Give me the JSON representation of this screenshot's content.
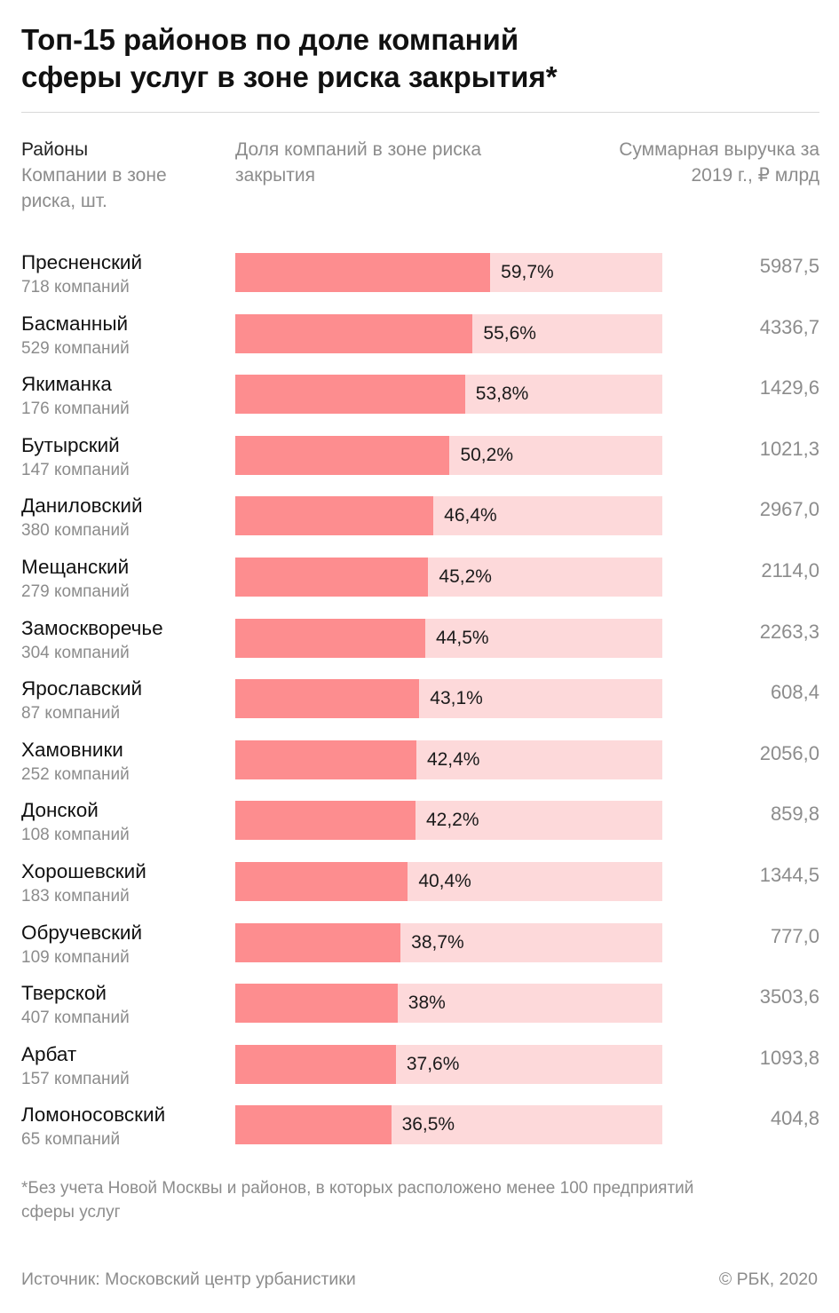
{
  "title_lines": [
    "Топ-15 районов по доле компаний",
    "сферы услуг в зоне риска закрытия*"
  ],
  "headers": {
    "district": "Районы",
    "companies": "Компании в зоне риска, шт.",
    "share": "Доля компаний в зоне риска закрытия",
    "revenue": "Суммарная выручка за 2019 г., ₽ млрд"
  },
  "colors": {
    "bar_fill": "#fd8d8f",
    "bar_track": "#fdd9da"
  },
  "chart_data": {
    "type": "bar",
    "orientation": "horizontal",
    "xlim": [
      0,
      100
    ],
    "categories": [
      "Пресненский",
      "Басманный",
      "Якиманка",
      "Бутырский",
      "Даниловский",
      "Мещанский",
      "Замоскворечье",
      "Ярославский",
      "Хамовники",
      "Донской",
      "Хорошевский",
      "Обручевский",
      "Тверской",
      "Арбат",
      "Ломоносовский"
    ],
    "companies": [
      "718 компаний",
      "529 компаний",
      "176 компаний",
      "147 компаний",
      "380 компаний",
      "279 компаний",
      "304 компаний",
      "87 компаний",
      "252 компаний",
      "108 компаний",
      "183 компаний",
      "109 компаний",
      "407 компаний",
      "157 компаний",
      "65 компаний"
    ],
    "values": [
      59.7,
      55.6,
      53.8,
      50.2,
      46.4,
      45.2,
      44.5,
      43.1,
      42.4,
      42.2,
      40.4,
      38.7,
      38,
      37.6,
      36.5
    ],
    "value_labels": [
      "59,7%",
      "55,6%",
      "53,8%",
      "50,2%",
      "46,4%",
      "45,2%",
      "44,5%",
      "43,1%",
      "42,4%",
      "42,2%",
      "40,4%",
      "38,7%",
      "38%",
      "37,6%",
      "36,5%"
    ],
    "revenue": [
      "5987,5",
      "4336,7",
      "1429,6",
      "1021,3",
      "2967,0",
      "2114,0",
      "2263,3",
      "608,4",
      "2056,0",
      "859,8",
      "1344,5",
      "777,0",
      "3503,6",
      "1093,8",
      "404,8"
    ]
  },
  "footnote": "*Без учета Новой Москвы и районов, в которых расположено менее 100 предприятий сферы услуг",
  "source": "Источник: Московский центр урбанистики",
  "copyright": "© РБК, 2020"
}
